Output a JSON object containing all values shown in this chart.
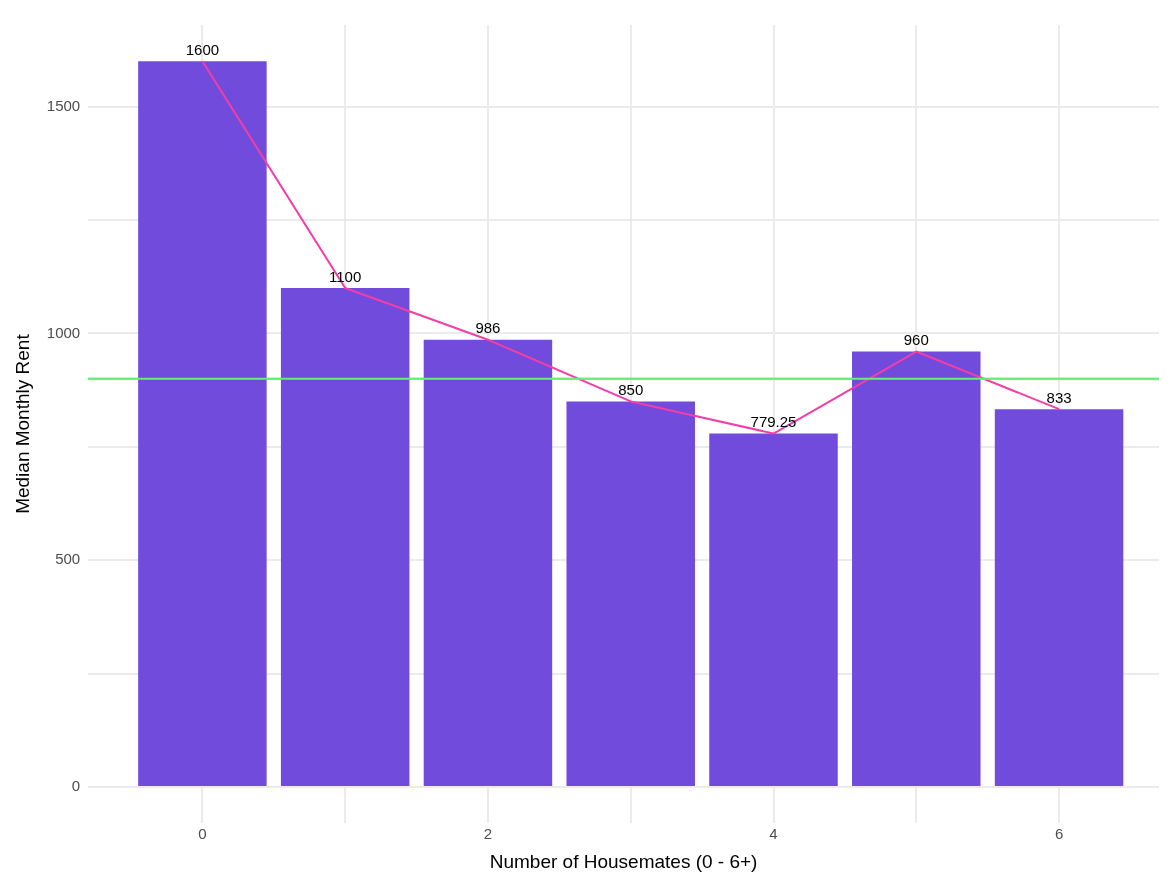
{
  "chart_data": {
    "type": "bar",
    "xlabel": "Number of Housemates (0 - 6+)",
    "ylabel": "Median Monthly Rent",
    "x": [
      0,
      1,
      2,
      3,
      4,
      5,
      6
    ],
    "series": [
      {
        "color": "#714bdc",
        "values": [
          1600,
          1100,
          986,
          850,
          779.25,
          960,
          833
        ],
        "value_labels": [
          "1600",
          "1100",
          "986",
          "850",
          "779.25",
          "960",
          "833"
        ]
      },
      {
        "type": "line",
        "color": "#f23ea8",
        "values": [
          1600,
          1100,
          986,
          850,
          779.25,
          960,
          833
        ]
      }
    ],
    "xlim": [
      -0.8,
      6.7
    ],
    "xticks": [
      0,
      {
        "value": 1,
        "label": null
      },
      2,
      {
        "value": 3,
        "label": null
      },
      4,
      {
        "value": 5,
        "label": null
      },
      6
    ],
    "ylim": [
      -80,
      1680
    ],
    "yticks": [
      0,
      {
        "value": 250,
        "label": null
      },
      500,
      {
        "value": 750,
        "label": null
      },
      1000,
      {
        "value": 1250,
        "label": null
      },
      1500
    ],
    "ref_lines": [
      {
        "axis": "y",
        "value": 900,
        "color": "#66ee77"
      }
    ],
    "grid": true,
    "legend": false
  }
}
